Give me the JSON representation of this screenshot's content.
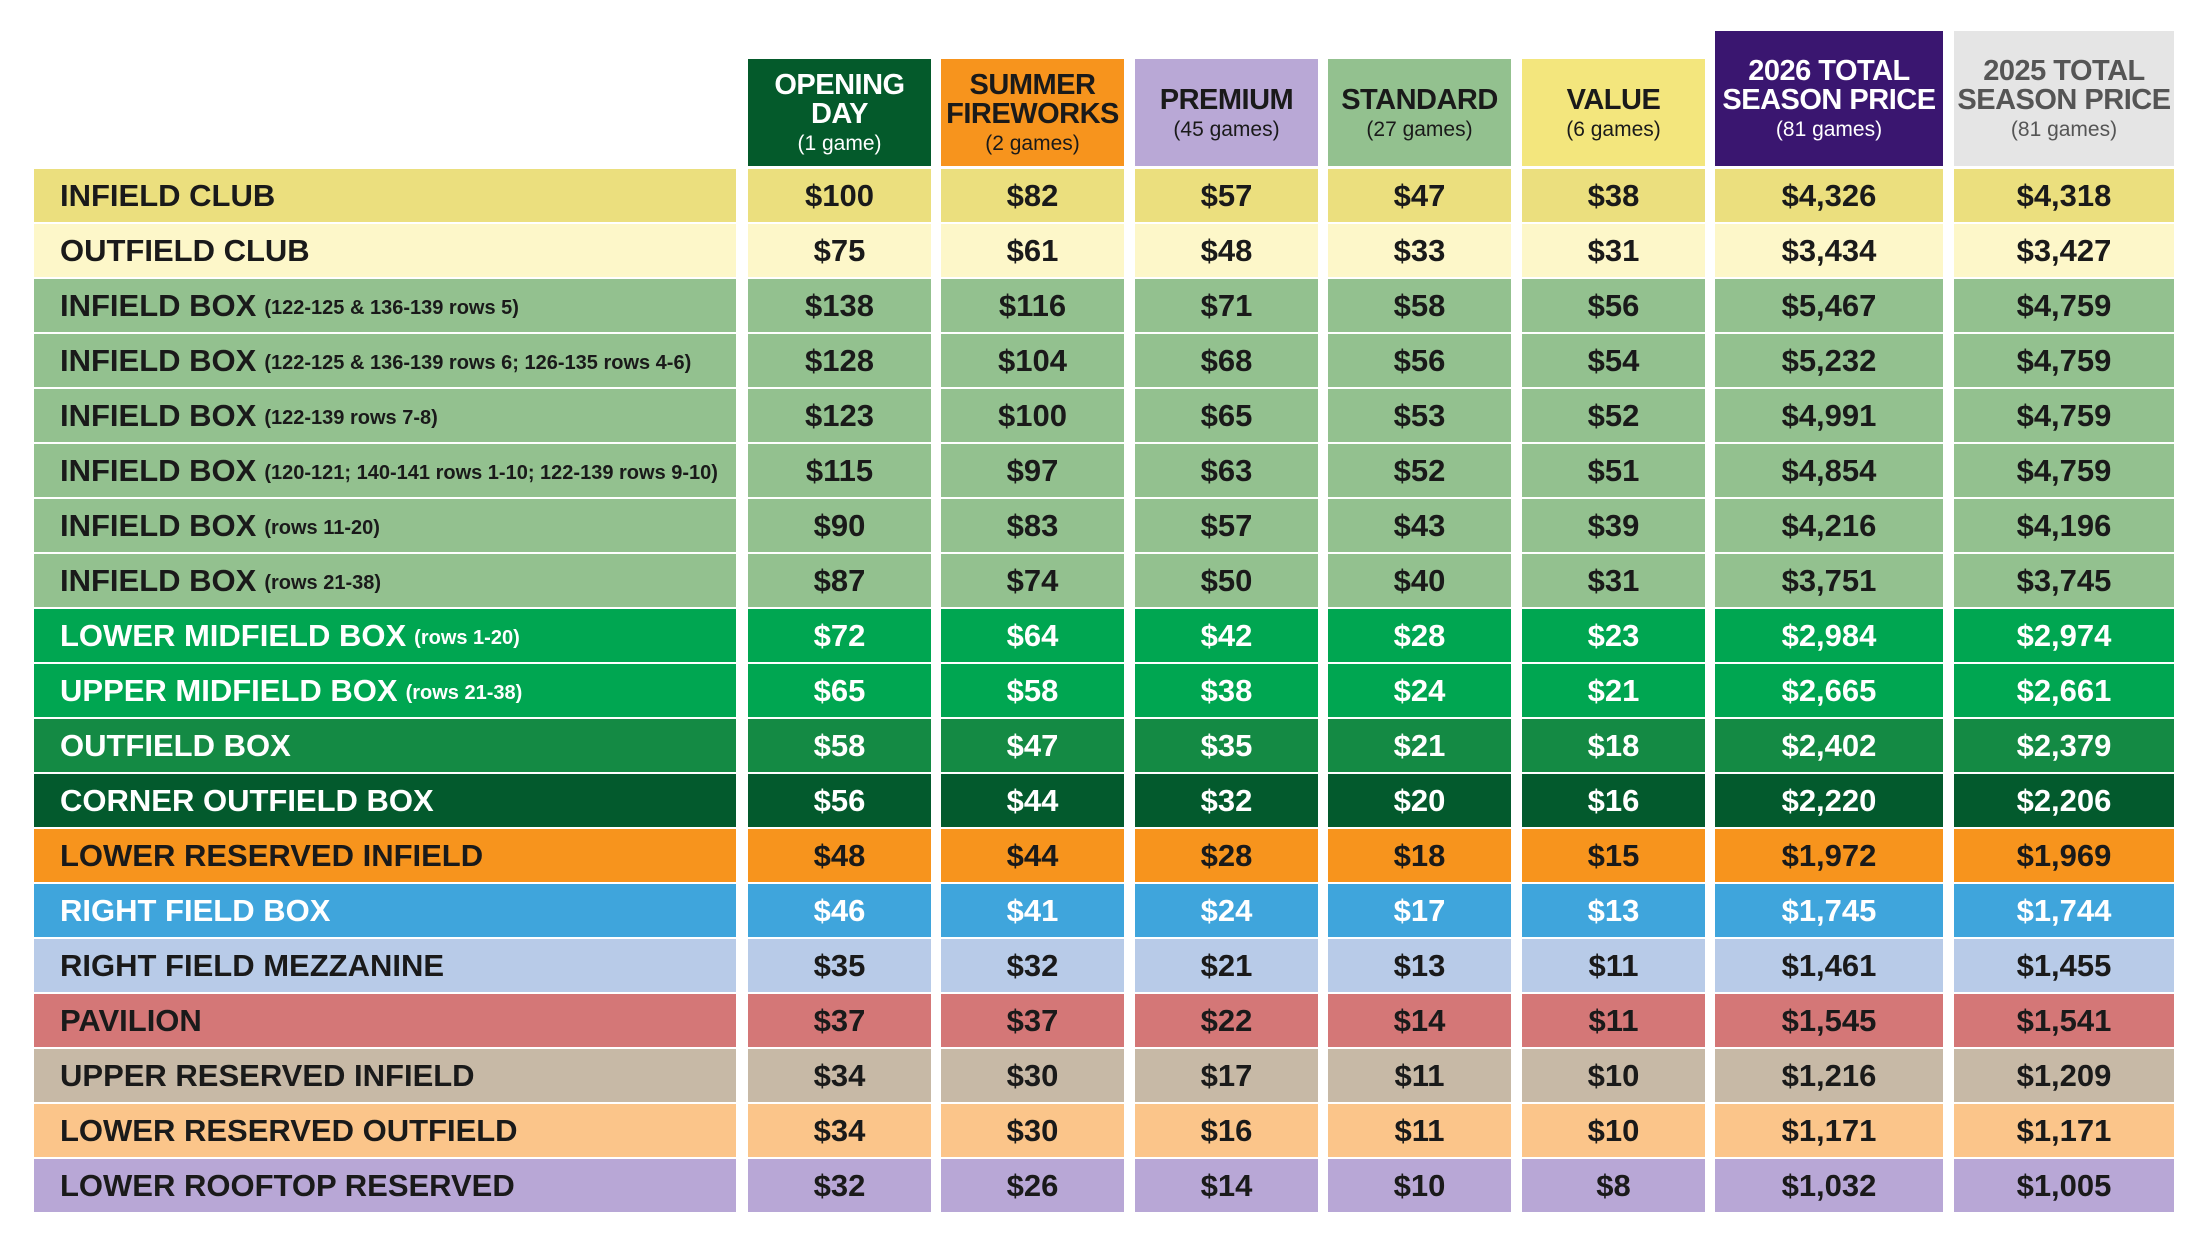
{
  "header": {
    "columns": [
      {
        "title": "OPENING DAY",
        "sub": "(1 game)",
        "fill": "#045a2b",
        "ink": "#ffffff"
      },
      {
        "title": "SUMMER FIREWORKS",
        "sub": "(2 games)",
        "fill": "#f7941d",
        "ink": "#1a1a1a"
      },
      {
        "title": "PREMIUM",
        "sub": "(45 games)",
        "fill": "#b9a8d6",
        "ink": "#1a1a1a"
      },
      {
        "title": "STANDARD",
        "sub": "(27 games)",
        "fill": "#93c18f",
        "ink": "#1a1a1a"
      },
      {
        "title": "VALUE",
        "sub": "(6 games)",
        "fill": "#f3e67d",
        "ink": "#1a1a1a"
      },
      {
        "title": "2026 TOTAL SEASON PRICE",
        "sub": "(81 games)",
        "fill": "#3a1670",
        "ink": "#ffffff"
      },
      {
        "title": "2025 TOTAL SEASON PRICE",
        "sub": "(81 games)",
        "fill": "#e5e5e5",
        "ink": "#555555"
      }
    ]
  },
  "table": {
    "rows": [
      {
        "label": "INFIELD CLUB",
        "detail": null,
        "fill": "#ebdf7e",
        "ink": "#1a1a1a",
        "prices": [
          "$100",
          "$82",
          "$57",
          "$47",
          "$38",
          "$4,326",
          "$4,318"
        ]
      },
      {
        "label": "OUTFIELD CLUB",
        "detail": null,
        "fill": "#fdf7c9",
        "ink": "#1a1a1a",
        "prices": [
          "$75",
          "$61",
          "$48",
          "$33",
          "$31",
          "$3,434",
          "$3,427"
        ]
      },
      {
        "label": "INFIELD BOX",
        "detail": "(122-125 & 136-139 rows 5)",
        "fill": "#93c18f",
        "ink": "#1a1a1a",
        "prices": [
          "$138",
          "$116",
          "$71",
          "$58",
          "$56",
          "$5,467",
          "$4,759"
        ]
      },
      {
        "label": "INFIELD BOX",
        "detail": "(122-125 & 136-139 rows 6; 126-135 rows 4-6)",
        "fill": "#93c18f",
        "ink": "#1a1a1a",
        "prices": [
          "$128",
          "$104",
          "$68",
          "$56",
          "$54",
          "$5,232",
          "$4,759"
        ]
      },
      {
        "label": "INFIELD BOX",
        "detail": "(122-139 rows 7-8)",
        "fill": "#93c18f",
        "ink": "#1a1a1a",
        "prices": [
          "$123",
          "$100",
          "$65",
          "$53",
          "$52",
          "$4,991",
          "$4,759"
        ]
      },
      {
        "label": "INFIELD BOX",
        "detail": "(120-121; 140-141 rows 1-10; 122-139 rows 9-10)",
        "fill": "#93c18f",
        "ink": "#1a1a1a",
        "prices": [
          "$115",
          "$97",
          "$63",
          "$52",
          "$51",
          "$4,854",
          "$4,759"
        ]
      },
      {
        "label": "INFIELD BOX",
        "detail": "(rows 11-20)",
        "fill": "#93c18f",
        "ink": "#1a1a1a",
        "prices": [
          "$90",
          "$83",
          "$57",
          "$43",
          "$39",
          "$4,216",
          "$4,196"
        ]
      },
      {
        "label": "INFIELD BOX",
        "detail": "(rows 21-38)",
        "fill": "#93c18f",
        "ink": "#1a1a1a",
        "prices": [
          "$87",
          "$74",
          "$50",
          "$40",
          "$31",
          "$3,751",
          "$3,745"
        ]
      },
      {
        "label": "LOWER MIDFIELD BOX",
        "detail": "(rows 1-20)",
        "fill": "#00a651",
        "ink": "#ffffff",
        "prices": [
          "$72",
          "$64",
          "$42",
          "$28",
          "$23",
          "$2,984",
          "$2,974"
        ]
      },
      {
        "label": "UPPER MIDFIELD BOX",
        "detail": "(rows 21-38)",
        "fill": "#00a651",
        "ink": "#ffffff",
        "prices": [
          "$65",
          "$58",
          "$38",
          "$24",
          "$21",
          "$2,665",
          "$2,661"
        ]
      },
      {
        "label": "OUTFIELD BOX",
        "detail": null,
        "fill": "#148a44",
        "ink": "#ffffff",
        "prices": [
          "$58",
          "$47",
          "$35",
          "$21",
          "$18",
          "$2,402",
          "$2,379"
        ]
      },
      {
        "label": "CORNER OUTFIELD BOX",
        "detail": null,
        "fill": "#035a2d",
        "ink": "#ffffff",
        "prices": [
          "$56",
          "$44",
          "$32",
          "$20",
          "$16",
          "$2,220",
          "$2,206"
        ]
      },
      {
        "label": "LOWER RESERVED INFIELD",
        "detail": null,
        "fill": "#f7941d",
        "ink": "#1a1a1a",
        "prices": [
          "$48",
          "$44",
          "$28",
          "$18",
          "$15",
          "$1,972",
          "$1,969"
        ]
      },
      {
        "label": "RIGHT FIELD BOX",
        "detail": null,
        "fill": "#3fa5dc",
        "ink": "#ffffff",
        "prices": [
          "$46",
          "$41",
          "$24",
          "$17",
          "$13",
          "$1,745",
          "$1,744"
        ]
      },
      {
        "label": "RIGHT FIELD MEZZANINE",
        "detail": null,
        "fill": "#b8cbe8",
        "ink": "#1a1a1a",
        "prices": [
          "$35",
          "$32",
          "$21",
          "$13",
          "$11",
          "$1,461",
          "$1,455"
        ]
      },
      {
        "label": "PAVILION",
        "detail": null,
        "fill": "#d47777",
        "ink": "#1a1a1a",
        "prices": [
          "$37",
          "$37",
          "$22",
          "$14",
          "$11",
          "$1,545",
          "$1,541"
        ]
      },
      {
        "label": "UPPER RESERVED INFIELD",
        "detail": null,
        "fill": "#c7b9a6",
        "ink": "#1a1a1a",
        "prices": [
          "$34",
          "$30",
          "$17",
          "$11",
          "$10",
          "$1,216",
          "$1,209"
        ]
      },
      {
        "label": "LOWER RESERVED OUTFIELD",
        "detail": null,
        "fill": "#fbc58a",
        "ink": "#1a1a1a",
        "prices": [
          "$34",
          "$30",
          "$16",
          "$11",
          "$10",
          "$1,171",
          "$1,171"
        ]
      },
      {
        "label": "LOWER ROOFTOP RESERVED",
        "detail": null,
        "fill": "#b8a7d6",
        "ink": "#1a1a1a",
        "prices": [
          "$32",
          "$26",
          "$14",
          "$10",
          "$8",
          "$1,032",
          "$1,005"
        ]
      }
    ]
  }
}
